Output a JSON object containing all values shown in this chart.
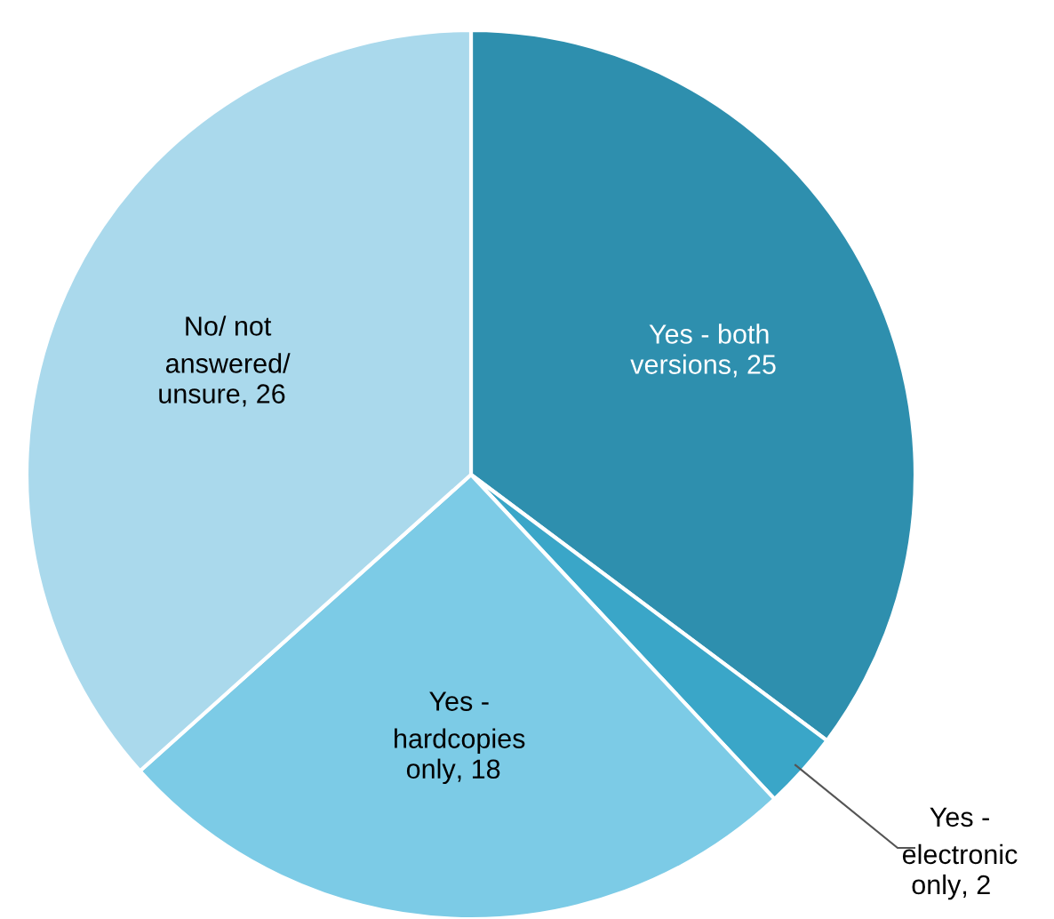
{
  "chart_data": {
    "type": "pie",
    "categories": [
      "Yes - both\nversions",
      "Yes -\nelectronic\nonly",
      "Yes -\nhardcopies\nonly",
      "No/ not\nanswered/\nunsure"
    ],
    "values": [
      25,
      2,
      18,
      26
    ],
    "colors": [
      "#2e8fae",
      "#3aa6c8",
      "#7ccbe6",
      "#aad9ec"
    ],
    "value_labels": [
      ", 25",
      ", 2",
      ", 18",
      ", 26"
    ],
    "legend": false
  }
}
